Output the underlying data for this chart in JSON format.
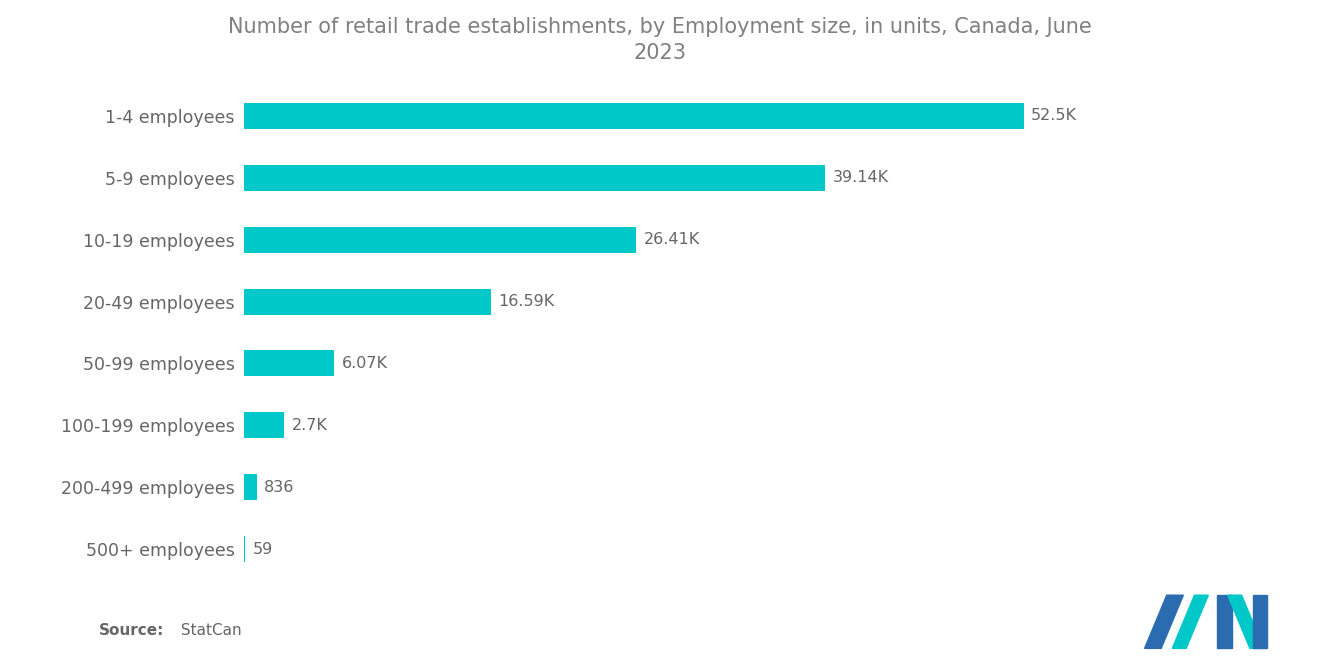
{
  "title_line1": "Number of retail trade establishments, by Employment size, in units, Canada, June",
  "title_line2": "2023",
  "categories": [
    "1-4 employees",
    "5-9 employees",
    "10-19 employees",
    "20-49 employees",
    "50-99 employees",
    "100-199 employees",
    "200-499 employees",
    "500+ employees"
  ],
  "values": [
    52500,
    39140,
    26410,
    16590,
    6070,
    2700,
    836,
    59
  ],
  "labels": [
    "52.5K",
    "39.14K",
    "26.41K",
    "16.59K",
    "6.07K",
    "2.7K",
    "836",
    "59"
  ],
  "bar_color": "#00C8C8",
  "background_color": "#ffffff",
  "title_color": "#808080",
  "label_color": "#666666",
  "ytick_color": "#666666",
  "source_bold": "Source:",
  "source_normal": " StatCan",
  "xlim": [
    0,
    60000
  ],
  "bar_height": 0.42,
  "logo_blue": "#2B6CB0",
  "logo_teal": "#00C8C8"
}
